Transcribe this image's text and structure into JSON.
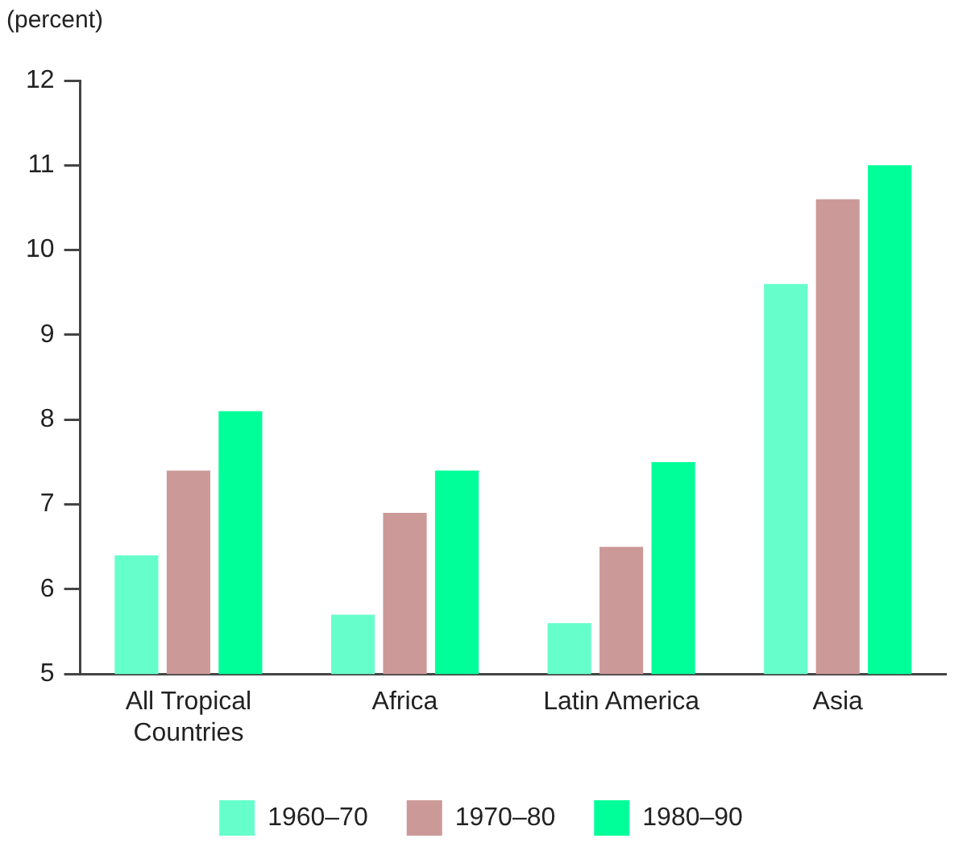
{
  "chart_data": {
    "type": "bar",
    "ylabel": "(percent)",
    "categories": [
      "All Tropical Countries",
      "Africa",
      "Latin America",
      "Asia"
    ],
    "series": [
      {
        "name": "1960–70",
        "color": "#66ffcc",
        "values": [
          6.4,
          5.7,
          5.6,
          9.6
        ]
      },
      {
        "name": "1970–80",
        "color": "#cc9999",
        "values": [
          7.4,
          6.9,
          6.5,
          10.6
        ]
      },
      {
        "name": "1980–90",
        "color": "#00ff99",
        "values": [
          8.1,
          7.4,
          7.5,
          11.0
        ]
      }
    ],
    "ylim": [
      5,
      12
    ],
    "yticks": [
      5,
      6,
      7,
      8,
      9,
      10,
      11,
      12
    ],
    "grid": false,
    "legend": "bottom"
  }
}
